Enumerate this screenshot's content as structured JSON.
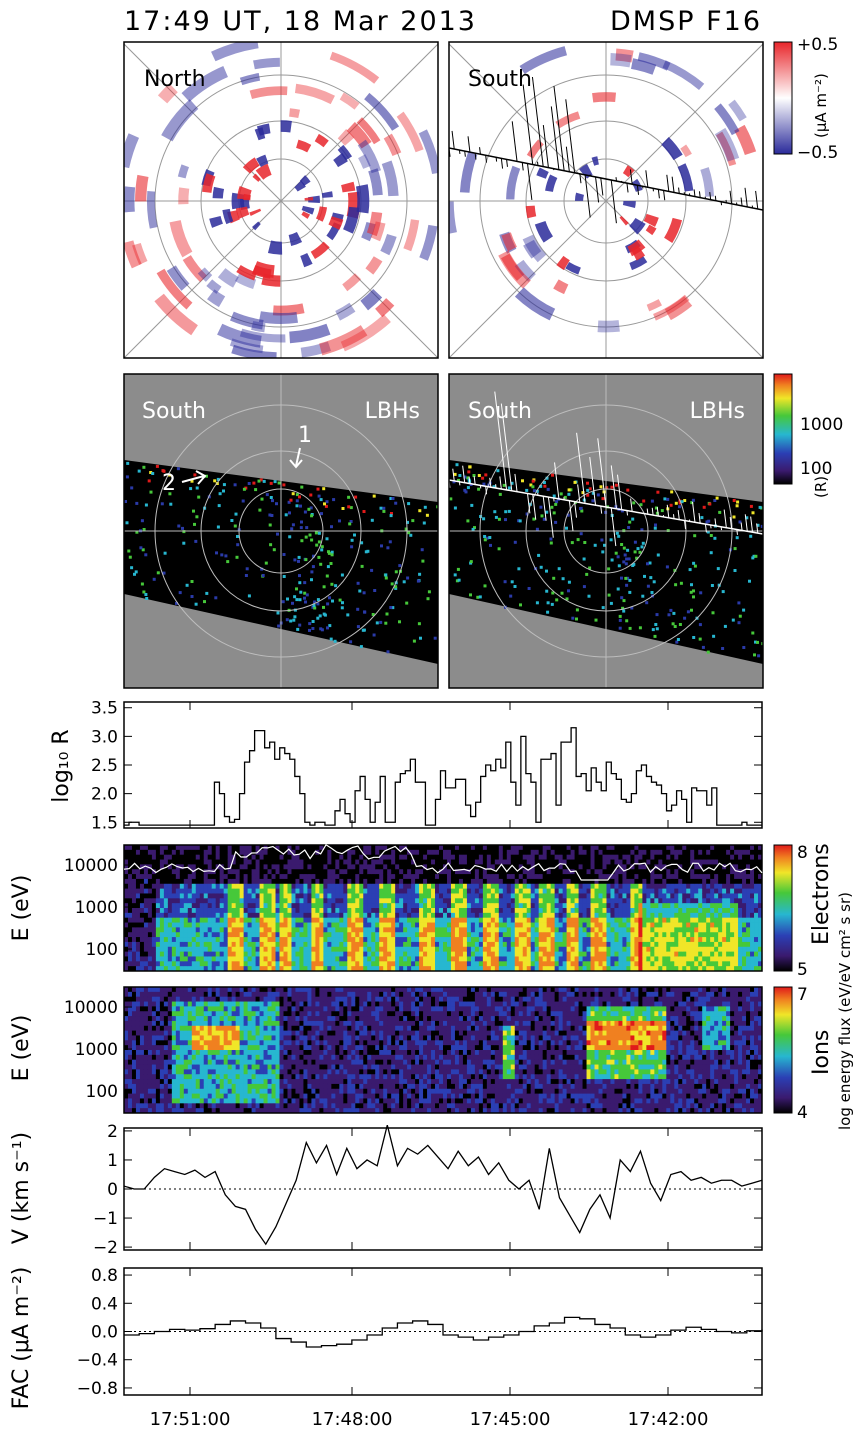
{
  "header": {
    "time": "17:49 UT, 18 Mar 2013",
    "satellite": "DMSP F16"
  },
  "panels": {
    "north_label": "North",
    "south_label": "South",
    "uv_region_label": "South",
    "uv_band_label": "LBHs",
    "arrow_1": "1",
    "arrow_2": "2"
  },
  "colorbars": {
    "fac": {
      "top": "+0.5",
      "bottom": "−0.5",
      "unit": "(μA m⁻²)",
      "colors": {
        "positive": "#e8252a",
        "negative": "#2a2a9a"
      }
    },
    "uv": {
      "tick_hi": "1000",
      "tick_lo": "100",
      "unit": "(R)"
    },
    "electrons": {
      "top": "8",
      "bottom": "5",
      "label": "Electrons"
    },
    "ions": {
      "top": "7",
      "bottom": "4",
      "label": "Ions"
    },
    "flux_unit": "log energy flux (eV/eV cm² s sr)"
  },
  "chart_data": [
    {
      "type": "line",
      "id": "uv_intensity",
      "ylabel": "log₁₀ R",
      "ylim": [
        1.4,
        3.6
      ],
      "yticks": [
        "1.5",
        "2.0",
        "2.5",
        "3.0",
        "3.5"
      ],
      "ytick_values": [
        1.5,
        2.0,
        2.5,
        3.0,
        3.5
      ],
      "x": [
        0,
        5,
        10,
        15,
        20,
        25,
        30,
        35,
        40,
        45,
        50,
        55,
        60,
        65,
        70,
        75,
        80,
        85,
        90,
        95,
        100,
        105,
        110,
        115,
        120,
        125,
        130,
        135,
        140,
        145,
        150,
        155,
        160,
        165,
        170,
        175,
        180,
        185,
        190,
        195,
        200,
        205,
        210,
        215,
        220,
        225,
        230,
        235,
        240,
        245,
        250,
        255,
        260,
        265,
        270,
        275,
        280,
        285,
        290,
        295,
        300,
        305,
        310,
        315,
        320,
        325,
        330,
        335,
        340,
        345,
        350,
        355,
        360,
        365,
        370,
        375,
        380,
        385,
        390,
        395,
        400,
        405,
        410,
        415,
        420,
        425,
        430,
        435,
        440,
        445,
        450,
        455,
        460,
        465,
        470,
        475,
        480,
        485,
        490,
        495,
        500,
        505,
        510,
        515,
        520,
        525,
        530,
        535,
        540,
        545,
        550,
        555,
        560,
        565,
        570,
        575,
        580,
        585,
        590,
        595,
        600,
        605,
        610,
        615,
        620,
        625,
        630,
        635
      ],
      "values": [
        1.45,
        1.5,
        1.5,
        1.45,
        1.45,
        1.45,
        1.45,
        1.45,
        1.45,
        1.45,
        1.45,
        1.45,
        1.45,
        1.45,
        1.45,
        1.45,
        1.45,
        1.45,
        2.2,
        2.0,
        1.6,
        1.5,
        1.55,
        2.0,
        2.55,
        2.75,
        3.1,
        3.1,
        2.8,
        2.9,
        2.6,
        2.8,
        2.7,
        2.6,
        2.3,
        2.0,
        1.5,
        1.45,
        1.5,
        1.5,
        1.45,
        1.45,
        1.7,
        1.9,
        1.65,
        1.5,
        2.05,
        2.3,
        1.9,
        1.5,
        1.85,
        2.3,
        1.5,
        1.5,
        2.2,
        2.35,
        2.4,
        2.6,
        2.2,
        2.2,
        1.45,
        1.45,
        1.9,
        2.4,
        2.1,
        2.1,
        2.25,
        2.25,
        1.8,
        1.6,
        1.85,
        2.3,
        2.5,
        2.4,
        2.6,
        2.45,
        2.9,
        2.2,
        1.8,
        3.0,
        2.35,
        2.2,
        1.5,
        2.6,
        2.6,
        2.7,
        1.8,
        2.9,
        2.9,
        3.15,
        2.3,
        2.35,
        2.05,
        2.45,
        2.2,
        2.05,
        2.55,
        2.35,
        2.25,
        1.9,
        1.85,
        2.0,
        2.4,
        2.5,
        2.3,
        2.2,
        2.15,
        2.0,
        1.7,
        1.8,
        2.05,
        1.9,
        1.5,
        2.1,
        2.05,
        2.05,
        1.8,
        2.1,
        1.45,
        1.45,
        1.45,
        1.45,
        1.45,
        1.5,
        1.45,
        1.45,
        1.45,
        1.45
      ]
    },
    {
      "type": "heatmap",
      "id": "electron_spectrogram",
      "ylabel": "E (eV)",
      "yticks": [
        "10000",
        "1000",
        "100"
      ],
      "ytick_values": [
        10000,
        1000,
        100
      ],
      "ylim": [
        30,
        30000
      ],
      "zlim": [
        5,
        8
      ]
    },
    {
      "type": "heatmap",
      "id": "ion_spectrogram",
      "ylabel": "E (eV)",
      "yticks": [
        "10000",
        "1000",
        "100"
      ],
      "ytick_values": [
        10000,
        1000,
        100
      ],
      "ylim": [
        30,
        30000
      ],
      "zlim": [
        4,
        7
      ]
    },
    {
      "type": "line",
      "id": "velocity",
      "ylabel": "V (km s⁻¹)",
      "ylim": [
        -2.1,
        2.1
      ],
      "yticks": [
        "2",
        "1",
        "0",
        "−1",
        "−2"
      ],
      "ytick_values": [
        2,
        1,
        0,
        -1,
        -2
      ],
      "x": [
        0,
        10,
        20,
        30,
        40,
        50,
        60,
        70,
        80,
        90,
        100,
        110,
        120,
        130,
        140,
        150,
        160,
        170,
        180,
        190,
        200,
        210,
        220,
        230,
        240,
        250,
        260,
        270,
        280,
        290,
        300,
        310,
        320,
        330,
        340,
        350,
        360,
        370,
        380,
        390,
        400,
        410,
        420,
        430,
        440,
        450,
        460,
        470,
        480,
        490,
        500,
        510,
        520,
        530,
        540,
        550,
        560,
        570,
        580,
        590,
        600,
        610,
        620,
        630
      ],
      "values": [
        0.1,
        0.0,
        0.0,
        0.4,
        0.7,
        0.6,
        0.5,
        0.65,
        0.4,
        0.6,
        -0.2,
        -0.6,
        -0.7,
        -1.4,
        -1.9,
        -1.3,
        -0.5,
        0.3,
        1.6,
        0.9,
        1.5,
        0.5,
        1.4,
        0.7,
        1.0,
        0.8,
        2.2,
        0.8,
        1.4,
        1.2,
        1.5,
        1.1,
        0.7,
        1.3,
        0.8,
        1.1,
        0.5,
        0.9,
        0.3,
        0.0,
        0.3,
        -0.7,
        1.4,
        -0.3,
        -0.9,
        -1.5,
        -0.7,
        -0.2,
        -1.0,
        1.0,
        0.6,
        1.3,
        0.2,
        -0.4,
        0.5,
        0.6,
        0.3,
        0.4,
        0.2,
        0.3,
        0.3,
        0.1,
        0.2,
        0.3
      ]
    },
    {
      "type": "line",
      "id": "fac",
      "ylabel": "FAC (μA m⁻²)",
      "ylim": [
        -0.9,
        0.9
      ],
      "yticks": [
        "0.8",
        "0.4",
        "0.0",
        "−0.4",
        "−0.8"
      ],
      "ytick_values": [
        0.8,
        0.4,
        0.0,
        -0.4,
        -0.8
      ],
      "x": [
        0,
        15,
        30,
        45,
        60,
        75,
        90,
        105,
        120,
        135,
        150,
        165,
        180,
        195,
        210,
        225,
        240,
        255,
        270,
        285,
        300,
        315,
        330,
        345,
        360,
        375,
        390,
        405,
        420,
        435,
        450,
        465,
        480,
        495,
        510,
        525,
        540,
        555,
        570,
        585,
        600,
        615,
        630
      ],
      "values": [
        -0.05,
        -0.03,
        0.0,
        0.03,
        0.02,
        0.04,
        0.1,
        0.15,
        0.12,
        0.05,
        -0.1,
        -0.15,
        -0.22,
        -0.2,
        -0.18,
        -0.12,
        -0.05,
        0.05,
        0.12,
        0.15,
        0.1,
        -0.05,
        -0.08,
        -0.12,
        -0.08,
        -0.05,
        0.0,
        0.08,
        0.12,
        0.2,
        0.18,
        0.1,
        0.05,
        -0.05,
        -0.08,
        -0.05,
        0.02,
        0.06,
        0.03,
        0.0,
        -0.02,
        0.01,
        0.03
      ]
    }
  ],
  "time_axis": {
    "labels": [
      "17:51:00",
      "17:48:00",
      "17:45:00",
      "17:42:00"
    ]
  }
}
